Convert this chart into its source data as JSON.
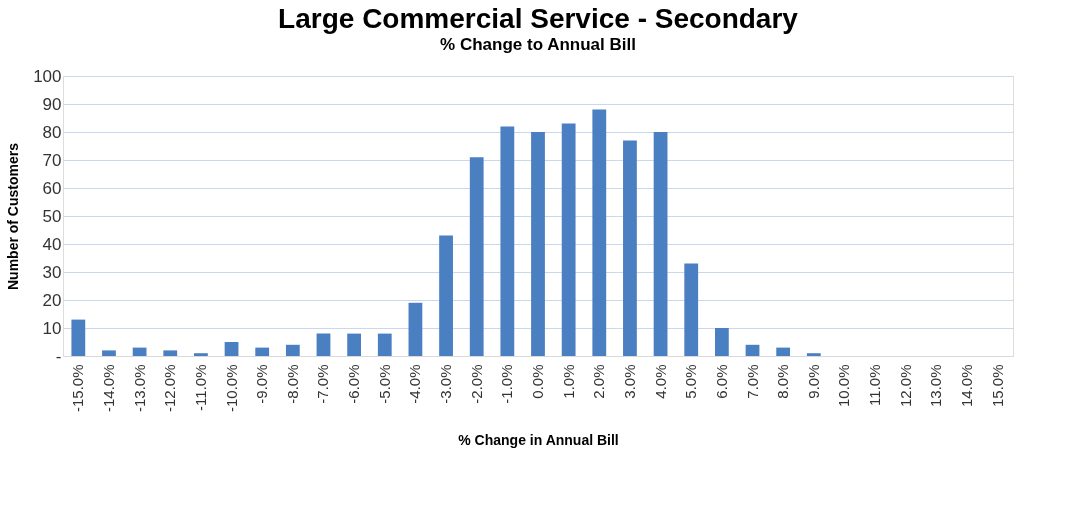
{
  "chart_data": {
    "type": "bar",
    "title": "Large Commercial Service - Secondary",
    "subtitle": "% Change to Annual Bill",
    "xlabel": "% Change in Annual Bill",
    "ylabel": "Number of Customers",
    "categories": [
      "-15.0%",
      "-14.0%",
      "-13.0%",
      "-12.0%",
      "-11.0%",
      "-10.0%",
      "-9.0%",
      "-8.0%",
      "-7.0%",
      "-6.0%",
      "-5.0%",
      "-4.0%",
      "-3.0%",
      "-2.0%",
      "-1.0%",
      "0.0%",
      "1.0%",
      "2.0%",
      "3.0%",
      "4.0%",
      "5.0%",
      "6.0%",
      "7.0%",
      "8.0%",
      "9.0%",
      "10.0%",
      "11.0%",
      "12.0%",
      "13.0%",
      "14.0%",
      "15.0%"
    ],
    "values": [
      13,
      2,
      3,
      2,
      1,
      5,
      3,
      4,
      8,
      8,
      8,
      19,
      43,
      71,
      82,
      80,
      83,
      88,
      77,
      80,
      33,
      10,
      4,
      3,
      1,
      0,
      0,
      0,
      0,
      0,
      0
    ],
    "color": "#4a7fc1",
    "ylim": [
      0,
      100
    ],
    "yticks": [
      {
        "value": 0,
        "label": "-"
      },
      10,
      20,
      30,
      40,
      50,
      60,
      70,
      80,
      90,
      100
    ],
    "grid": "y"
  }
}
